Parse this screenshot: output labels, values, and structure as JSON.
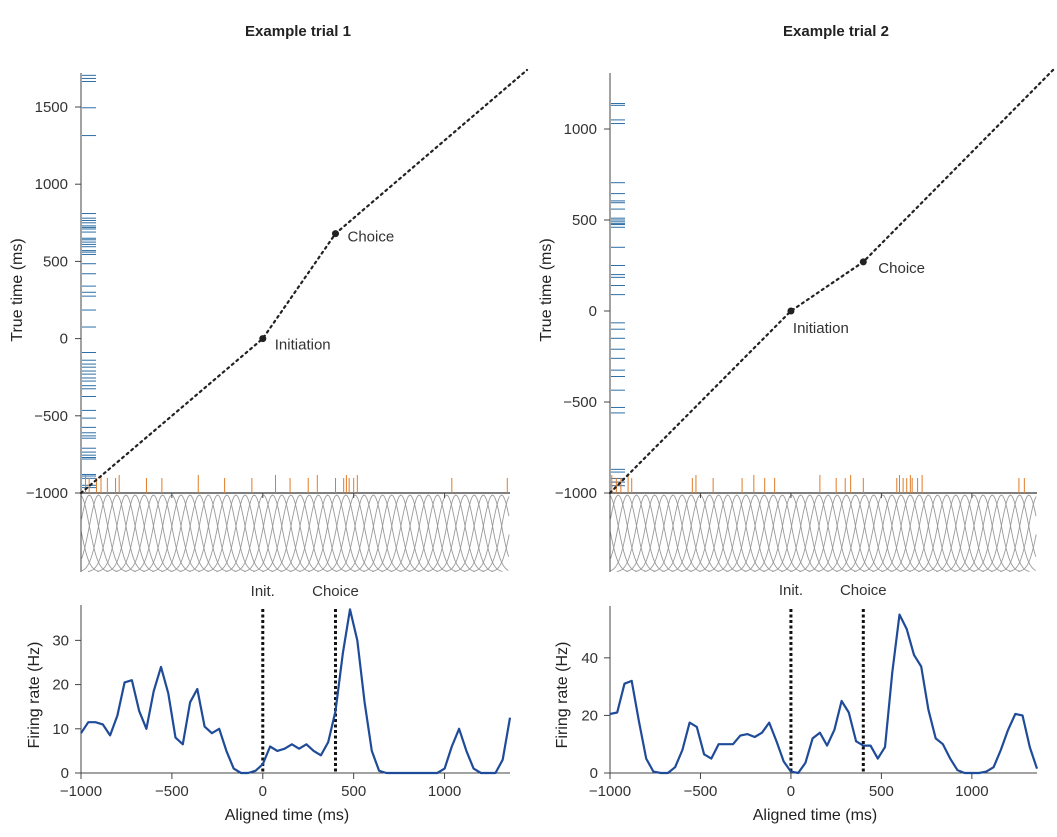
{
  "colors": {
    "spike_upper": "#2c6ea6",
    "spike_lower": "#e07b28",
    "rate_line": "#1f4b99",
    "basis": "#9a9a9a",
    "warp": "#222222",
    "marker": "#222222"
  },
  "chart_data": [
    {
      "type": "line",
      "title": "Example trial 1",
      "top": {
        "ylabel": "True time (ms)",
        "ylim": [
          -1000,
          1720
        ],
        "yticks": [
          -1000,
          -500,
          0,
          500,
          1000,
          1500
        ],
        "ytick_labels": [
          "−1000",
          "−500",
          "0",
          "500",
          "1000",
          "1500"
        ],
        "warp_points": [
          [
            -1000,
            -1000
          ],
          [
            0,
            0
          ],
          [
            400,
            680
          ],
          [
            1460,
            1750
          ]
        ],
        "events": [
          {
            "label": "Initiation",
            "x": 0,
            "y": 0
          },
          {
            "label": "Choice",
            "x": 400,
            "y": 680
          }
        ],
        "spikes_true_time": [
          -965,
          -950,
          -905,
          -890,
          -880,
          -780,
          -770,
          -755,
          -735,
          -710,
          -645,
          -630,
          -610,
          -575,
          -515,
          -465,
          -375,
          -325,
          -305,
          -275,
          -255,
          -230,
          -210,
          -185,
          -165,
          -140,
          -90,
          75,
          185,
          275,
          300,
          340,
          420,
          485,
          545,
          560,
          570,
          595,
          610,
          625,
          640,
          650,
          690,
          710,
          720,
          730,
          750,
          765,
          780,
          810,
          1315,
          1495,
          1665,
          1685,
          1705
        ],
        "spikes_aligned_time": [
          -975,
          -955,
          -915,
          -890,
          -855,
          -810,
          -790,
          -640,
          -555,
          -355,
          -210,
          -60,
          70,
          150,
          250,
          300,
          400,
          445,
          460,
          475,
          500,
          520,
          1040,
          1345
        ]
      },
      "bottom": {
        "ylabel": "Firing rate (Hz)",
        "xlabel": "Aligned time (ms)",
        "xlim": [
          -1000,
          1360
        ],
        "xticks": [
          -1000,
          -500,
          0,
          500,
          1000
        ],
        "xtick_labels": [
          "−1000",
          "−500",
          "0",
          "500",
          "1000"
        ],
        "ylim": [
          0,
          38
        ],
        "yticks": [
          0,
          10,
          20,
          30
        ],
        "ytick_labels": [
          "0",
          "10",
          "20",
          "30"
        ],
        "event_lines": [
          {
            "label": "Init.",
            "x": 0
          },
          {
            "label": "Choice",
            "x": 400
          }
        ],
        "rate": {
          "x": [
            -1000,
            -960,
            -920,
            -880,
            -840,
            -800,
            -760,
            -720,
            -680,
            -640,
            -600,
            -560,
            -520,
            -480,
            -440,
            -400,
            -360,
            -320,
            -280,
            -240,
            -200,
            -160,
            -120,
            -80,
            -40,
            0,
            40,
            80,
            120,
            160,
            200,
            240,
            280,
            320,
            360,
            400,
            440,
            480,
            520,
            560,
            600,
            640,
            680,
            720,
            760,
            800,
            840,
            880,
            920,
            960,
            1000,
            1040,
            1080,
            1120,
            1160,
            1200,
            1240,
            1280,
            1320,
            1360
          ],
          "y": [
            9,
            11.5,
            11.5,
            11,
            8.5,
            13,
            20.5,
            21,
            14,
            10,
            18.5,
            24,
            18,
            8,
            6.5,
            16,
            19,
            10.5,
            9,
            10,
            5,
            1,
            0,
            0,
            0.5,
            2,
            6,
            5,
            5.5,
            6.5,
            5.5,
            6.5,
            5,
            4,
            7,
            14,
            27,
            37,
            30,
            16,
            5,
            0.5,
            0,
            0,
            0,
            0,
            0,
            0,
            0,
            0,
            1,
            6,
            10,
            5,
            1,
            0,
            0,
            0,
            3,
            12.5
          ]
        }
      }
    },
    {
      "type": "line",
      "title": "Example trial 2",
      "top": {
        "ylabel": "True time (ms)",
        "ylim": [
          -1000,
          1300
        ],
        "yticks": [
          -1000,
          -500,
          0,
          500,
          1000
        ],
        "ytick_labels": [
          "−1000",
          "−500",
          "0",
          "500",
          "1000"
        ],
        "warp_points": [
          [
            -1000,
            -1000
          ],
          [
            0,
            0
          ],
          [
            400,
            270
          ],
          [
            1460,
            1340
          ]
        ],
        "events": [
          {
            "label": "Initiation",
            "x": 0,
            "y": 0
          },
          {
            "label": "Choice",
            "x": 400,
            "y": 270
          }
        ],
        "spikes_true_time": [
          -960,
          -940,
          -920,
          -885,
          -870,
          -560,
          -530,
          -435,
          -360,
          -325,
          -260,
          -210,
          -150,
          -100,
          -65,
          90,
          140,
          185,
          200,
          250,
          350,
          460,
          475,
          480,
          490,
          500,
          510,
          560,
          595,
          605,
          645,
          705,
          1030,
          1050,
          1130,
          1140
        ],
        "spikes_aligned_time": [
          -990,
          -965,
          -940,
          -900,
          -880,
          -545,
          -525,
          -430,
          -270,
          -205,
          -145,
          -90,
          160,
          250,
          300,
          330,
          400,
          585,
          600,
          620,
          640,
          660,
          670,
          700,
          725,
          1260,
          1290
        ]
      },
      "bottom": {
        "ylabel": "Firing rate (Hz)",
        "xlabel": "Aligned time (ms)",
        "xlim": [
          -1000,
          1360
        ],
        "xticks": [
          -1000,
          -500,
          0,
          500,
          1000
        ],
        "xtick_labels": [
          "−1000",
          "−500",
          "0",
          "500",
          "1000"
        ],
        "ylim": [
          0,
          58
        ],
        "yticks": [
          0,
          20,
          40
        ],
        "ytick_labels": [
          "0",
          "20",
          "40"
        ],
        "event_lines": [
          {
            "label": "Init.",
            "x": 0
          },
          {
            "label": "Choice",
            "x": 400
          }
        ],
        "rate": {
          "x": [
            -1000,
            -960,
            -920,
            -880,
            -840,
            -800,
            -760,
            -720,
            -680,
            -640,
            -600,
            -560,
            -520,
            -480,
            -440,
            -400,
            -360,
            -320,
            -280,
            -240,
            -200,
            -160,
            -120,
            -80,
            -40,
            0,
            40,
            80,
            120,
            160,
            200,
            240,
            280,
            320,
            360,
            400,
            440,
            480,
            520,
            560,
            600,
            640,
            680,
            720,
            760,
            800,
            840,
            880,
            920,
            960,
            1000,
            1040,
            1080,
            1120,
            1160,
            1200,
            1240,
            1280,
            1320,
            1360
          ],
          "y": [
            20.5,
            21,
            31,
            32,
            18,
            5,
            0.5,
            0,
            0,
            2,
            8,
            17.5,
            16,
            6.5,
            5,
            10,
            10,
            10,
            13,
            13.5,
            12.5,
            14,
            17.5,
            11,
            4,
            0.5,
            0,
            3.5,
            12,
            14,
            9.5,
            15,
            25,
            21,
            11,
            9.5,
            9.5,
            5,
            9,
            35,
            55,
            50,
            41,
            37,
            22,
            12,
            10,
            5,
            1,
            0,
            0,
            0,
            0.5,
            2,
            8,
            15,
            20.5,
            20,
            9,
            1.5
          ]
        }
      }
    }
  ]
}
